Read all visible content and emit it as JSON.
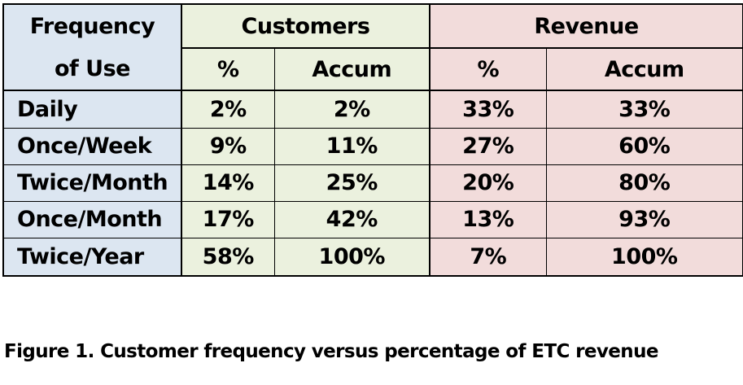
{
  "table": {
    "header": {
      "frequency_line1": "Frequency",
      "frequency_line2": "of Use",
      "customers": "Customers",
      "revenue": "Revenue",
      "cust_pct": "%",
      "cust_accum": "Accum",
      "rev_pct": "%",
      "rev_accum": "Accum"
    },
    "rows": [
      {
        "label": "Daily",
        "cust_pct": "2%",
        "cust_accum": "2%",
        "rev_pct": "33%",
        "rev_accum": "33%"
      },
      {
        "label": "Once/Week",
        "cust_pct": "9%",
        "cust_accum": "11%",
        "rev_pct": "27%",
        "rev_accum": "60%"
      },
      {
        "label": "Twice/Month",
        "cust_pct": "14%",
        "cust_accum": "25%",
        "rev_pct": "20%",
        "rev_accum": "80%"
      },
      {
        "label": "Once/Month",
        "cust_pct": "17%",
        "cust_accum": "42%",
        "rev_pct": "13%",
        "rev_accum": "93%"
      },
      {
        "label": "Twice/Year",
        "cust_pct": "58%",
        "cust_accum": "100%",
        "rev_pct": "7%",
        "rev_accum": "100%"
      }
    ]
  },
  "caption": "Figure 1. Customer frequency versus percentage of ETC revenue",
  "colors": {
    "frequency_fill": "#dce6f1",
    "customers_fill": "#ebf1de",
    "revenue_fill": "#f2dcdb"
  }
}
